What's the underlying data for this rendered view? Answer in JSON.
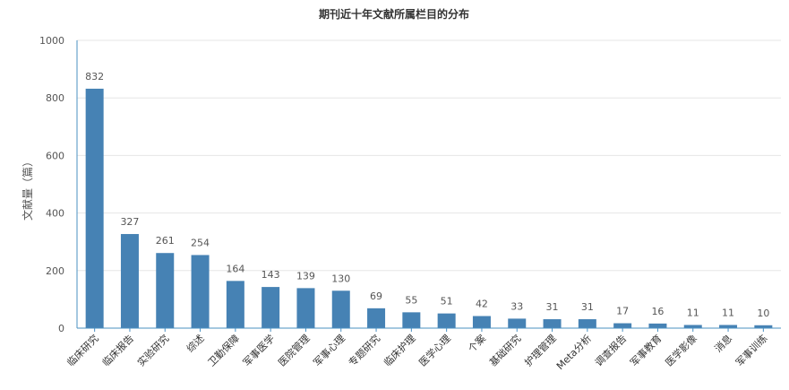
{
  "chart_data": {
    "type": "bar",
    "title": "期刊近十年文献所属栏目的分布",
    "xlabel": "",
    "ylabel": "文献量（篇）",
    "ylim": [
      0,
      1000
    ],
    "yticks": [
      0,
      200,
      400,
      600,
      800,
      1000
    ],
    "grid": true,
    "legend": "none",
    "bar_color": "#4682b4",
    "categories": [
      "临床研究",
      "临床报告",
      "实验研究",
      "综述",
      "卫勤保障",
      "军事医学",
      "医院管理",
      "军事心理",
      "专题研究",
      "临床护理",
      "医学心理",
      "个案",
      "基础研究",
      "护理管理",
      "Meta分析",
      "调查报告",
      "军事教育",
      "医学影像",
      "消息",
      "军事训练"
    ],
    "values": [
      832,
      327,
      261,
      254,
      164,
      143,
      139,
      130,
      69,
      55,
      51,
      42,
      33,
      31,
      31,
      17,
      16,
      11,
      11,
      10
    ]
  }
}
